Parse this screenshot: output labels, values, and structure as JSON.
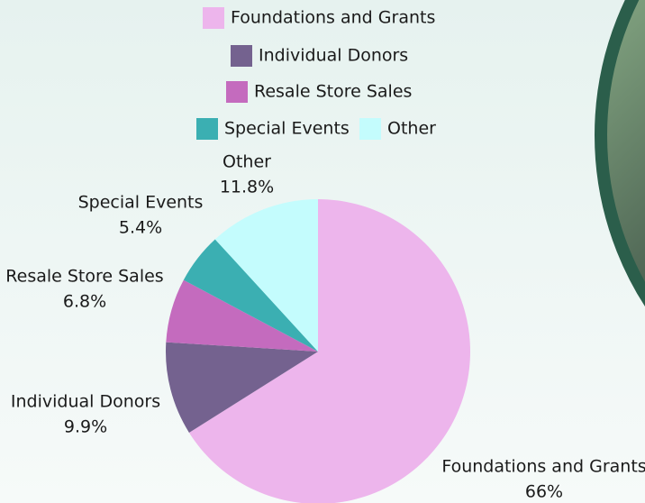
{
  "chart_data": {
    "type": "pie",
    "categories": [
      "Foundations and Grants",
      "Individual Donors",
      "Resale Store Sales",
      "Special Events",
      "Other"
    ],
    "values": [
      66,
      9.9,
      6.8,
      5.4,
      11.8
    ],
    "value_labels": [
      "66%",
      "9.9%",
      "6.8%",
      "5.4%",
      "11.8%"
    ],
    "colors": [
      "#EDB5EC",
      "#74628F",
      "#C46BBE",
      "#3BAFB2",
      "#C4FCFD"
    ],
    "legend": "top"
  }
}
